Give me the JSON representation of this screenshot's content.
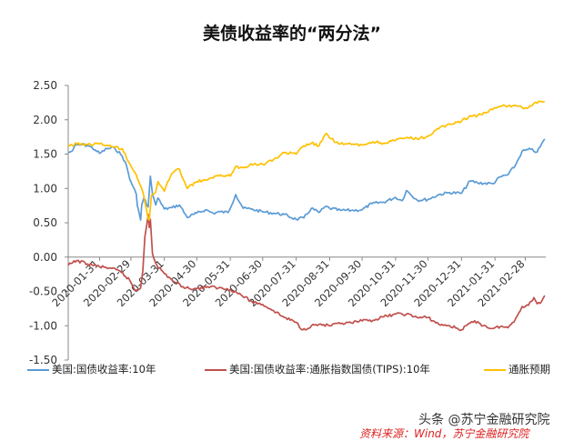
{
  "chart_data": {
    "type": "line",
    "title": "美债收益率的“两分法”",
    "ylim": [
      -1.5,
      2.5
    ],
    "yticks": [
      "2.50",
      "2.00",
      "1.50",
      "1.00",
      "0.50",
      "0.00",
      "-0.50",
      "-1.00",
      "-1.50"
    ],
    "x_tick_labels": [
      "2020-01-31",
      "2020-02-29",
      "2020-03-31",
      "2020-04-30",
      "2020-05-31",
      "2020-06-30",
      "2020-07-31",
      "2020-08-31",
      "2020-09-30",
      "2020-10-31",
      "2020-11-30",
      "2020-12-31",
      "2021-01-31",
      "2021-02-28"
    ],
    "x_range": [
      "2020-01-02",
      "2021-03-19"
    ],
    "grid": false,
    "legend_position": "bottom",
    "series": [
      {
        "name": "美国:国债收益率:10年",
        "color": "#5b9bd5",
        "points": [
          [
            "2020-01-02",
            1.52
          ],
          [
            "2020-01-06",
            1.55
          ],
          [
            "2020-01-08",
            1.62
          ],
          [
            "2020-01-15",
            1.64
          ],
          [
            "2020-01-21",
            1.62
          ],
          [
            "2020-01-27",
            1.56
          ],
          [
            "2020-01-31",
            1.51
          ],
          [
            "2020-02-07",
            1.58
          ],
          [
            "2020-02-14",
            1.59
          ],
          [
            "2020-02-21",
            1.47
          ],
          [
            "2020-02-25",
            1.33
          ],
          [
            "2020-02-28",
            1.13
          ],
          [
            "2020-03-03",
            1.0
          ],
          [
            "2020-03-05",
            0.92
          ],
          [
            "2020-03-06",
            0.75
          ],
          [
            "2020-03-09",
            0.54
          ],
          [
            "2020-03-10",
            0.76
          ],
          [
            "2020-03-12",
            0.86
          ],
          [
            "2020-03-16",
            0.73
          ],
          [
            "2020-03-18",
            1.18
          ],
          [
            "2020-03-20",
            0.92
          ],
          [
            "2020-03-23",
            0.76
          ],
          [
            "2020-03-25",
            0.86
          ],
          [
            "2020-03-31",
            0.7
          ],
          [
            "2020-04-07",
            0.72
          ],
          [
            "2020-04-14",
            0.76
          ],
          [
            "2020-04-21",
            0.58
          ],
          [
            "2020-04-30",
            0.64
          ],
          [
            "2020-05-08",
            0.69
          ],
          [
            "2020-05-15",
            0.64
          ],
          [
            "2020-05-22",
            0.66
          ],
          [
            "2020-05-29",
            0.65
          ],
          [
            "2020-06-05",
            0.91
          ],
          [
            "2020-06-12",
            0.71
          ],
          [
            "2020-06-19",
            0.7
          ],
          [
            "2020-06-30",
            0.66
          ],
          [
            "2020-07-10",
            0.64
          ],
          [
            "2020-07-20",
            0.62
          ],
          [
            "2020-07-31",
            0.55
          ],
          [
            "2020-08-07",
            0.57
          ],
          [
            "2020-08-14",
            0.71
          ],
          [
            "2020-08-21",
            0.65
          ],
          [
            "2020-08-28",
            0.74
          ],
          [
            "2020-08-31",
            0.71
          ],
          [
            "2020-09-10",
            0.68
          ],
          [
            "2020-09-20",
            0.68
          ],
          [
            "2020-09-30",
            0.69
          ],
          [
            "2020-10-09",
            0.78
          ],
          [
            "2020-10-20",
            0.8
          ],
          [
            "2020-10-31",
            0.87
          ],
          [
            "2020-11-06",
            0.82
          ],
          [
            "2020-11-10",
            0.97
          ],
          [
            "2020-11-20",
            0.83
          ],
          [
            "2020-11-30",
            0.84
          ],
          [
            "2020-12-10",
            0.91
          ],
          [
            "2020-12-20",
            0.94
          ],
          [
            "2020-12-31",
            0.93
          ],
          [
            "2021-01-08",
            1.11
          ],
          [
            "2021-01-15",
            1.08
          ],
          [
            "2021-01-29",
            1.07
          ],
          [
            "2021-02-05",
            1.17
          ],
          [
            "2021-02-12",
            1.2
          ],
          [
            "2021-02-19",
            1.34
          ],
          [
            "2021-02-25",
            1.54
          ],
          [
            "2021-03-05",
            1.57
          ],
          [
            "2021-03-11",
            1.53
          ],
          [
            "2021-03-18",
            1.72
          ]
        ]
      },
      {
        "name": "美国:国债收益率:通胀指数国债(TIPS):10年",
        "color": "#c0504d",
        "points": [
          [
            "2020-01-02",
            -0.12
          ],
          [
            "2020-01-10",
            -0.05
          ],
          [
            "2020-01-20",
            -0.1
          ],
          [
            "2020-01-31",
            -0.14
          ],
          [
            "2020-02-10",
            -0.16
          ],
          [
            "2020-02-20",
            -0.22
          ],
          [
            "2020-02-28",
            -0.34
          ],
          [
            "2020-03-04",
            -0.49
          ],
          [
            "2020-03-09",
            -0.45
          ],
          [
            "2020-03-11",
            -0.2
          ],
          [
            "2020-03-13",
            0.3
          ],
          [
            "2020-03-16",
            0.62
          ],
          [
            "2020-03-17",
            0.43
          ],
          [
            "2020-03-18",
            0.55
          ],
          [
            "2020-03-20",
            0.05
          ],
          [
            "2020-03-24",
            -0.12
          ],
          [
            "2020-03-31",
            -0.24
          ],
          [
            "2020-04-10",
            -0.37
          ],
          [
            "2020-04-20",
            -0.45
          ],
          [
            "2020-04-30",
            -0.46
          ],
          [
            "2020-05-10",
            -0.43
          ],
          [
            "2020-05-20",
            -0.45
          ],
          [
            "2020-05-31",
            -0.47
          ],
          [
            "2020-06-10",
            -0.55
          ],
          [
            "2020-06-20",
            -0.65
          ],
          [
            "2020-06-30",
            -0.69
          ],
          [
            "2020-07-10",
            -0.78
          ],
          [
            "2020-07-20",
            -0.88
          ],
          [
            "2020-07-31",
            -0.95
          ],
          [
            "2020-08-06",
            -1.06
          ],
          [
            "2020-08-14",
            -1.0
          ],
          [
            "2020-08-21",
            -0.98
          ],
          [
            "2020-08-31",
            -1.0
          ],
          [
            "2020-09-10",
            -0.97
          ],
          [
            "2020-09-20",
            -0.96
          ],
          [
            "2020-09-30",
            -0.93
          ],
          [
            "2020-10-10",
            -0.92
          ],
          [
            "2020-10-20",
            -0.87
          ],
          [
            "2020-10-31",
            -0.83
          ],
          [
            "2020-11-10",
            -0.83
          ],
          [
            "2020-11-20",
            -0.88
          ],
          [
            "2020-11-30",
            -0.88
          ],
          [
            "2020-12-10",
            -0.98
          ],
          [
            "2020-12-20",
            -1.0
          ],
          [
            "2020-12-31",
            -1.06
          ],
          [
            "2021-01-08",
            -0.96
          ],
          [
            "2021-01-15",
            -0.94
          ],
          [
            "2021-01-20",
            -1.0
          ],
          [
            "2021-01-29",
            -1.04
          ],
          [
            "2021-02-05",
            -1.01
          ],
          [
            "2021-02-12",
            -1.03
          ],
          [
            "2021-02-19",
            -0.9
          ],
          [
            "2021-02-25",
            -0.72
          ],
          [
            "2021-03-03",
            -0.7
          ],
          [
            "2021-03-08",
            -0.59
          ],
          [
            "2021-03-11",
            -0.68
          ],
          [
            "2021-03-15",
            -0.65
          ],
          [
            "2021-03-18",
            -0.56
          ]
        ]
      },
      {
        "name": "通胀预期",
        "color": "#ffc000",
        "points": [
          [
            "2020-01-02",
            1.62
          ],
          [
            "2020-01-10",
            1.65
          ],
          [
            "2020-01-20",
            1.64
          ],
          [
            "2020-01-31",
            1.65
          ],
          [
            "2020-02-07",
            1.63
          ],
          [
            "2020-02-14",
            1.6
          ],
          [
            "2020-02-21",
            1.58
          ],
          [
            "2020-02-28",
            1.36
          ],
          [
            "2020-03-05",
            1.2
          ],
          [
            "2020-03-10",
            1.0
          ],
          [
            "2020-03-13",
            0.8
          ],
          [
            "2020-03-16",
            0.55
          ],
          [
            "2020-03-17",
            0.54
          ],
          [
            "2020-03-19",
            0.9
          ],
          [
            "2020-03-23",
            0.95
          ],
          [
            "2020-03-25",
            1.1
          ],
          [
            "2020-03-31",
            0.96
          ],
          [
            "2020-04-03",
            1.1
          ],
          [
            "2020-04-08",
            1.23
          ],
          [
            "2020-04-14",
            1.28
          ],
          [
            "2020-04-21",
            1.0
          ],
          [
            "2020-04-30",
            1.1
          ],
          [
            "2020-05-08",
            1.12
          ],
          [
            "2020-05-15",
            1.15
          ],
          [
            "2020-05-22",
            1.2
          ],
          [
            "2020-05-31",
            1.18
          ],
          [
            "2020-06-05",
            1.32
          ],
          [
            "2020-06-12",
            1.3
          ],
          [
            "2020-06-19",
            1.36
          ],
          [
            "2020-06-30",
            1.35
          ],
          [
            "2020-07-10",
            1.42
          ],
          [
            "2020-07-20",
            1.52
          ],
          [
            "2020-07-31",
            1.5
          ],
          [
            "2020-08-07",
            1.62
          ],
          [
            "2020-08-14",
            1.66
          ],
          [
            "2020-08-21",
            1.62
          ],
          [
            "2020-08-28",
            1.8
          ],
          [
            "2020-08-31",
            1.73
          ],
          [
            "2020-09-10",
            1.65
          ],
          [
            "2020-09-20",
            1.64
          ],
          [
            "2020-09-30",
            1.63
          ],
          [
            "2020-10-10",
            1.68
          ],
          [
            "2020-10-20",
            1.66
          ],
          [
            "2020-10-31",
            1.7
          ],
          [
            "2020-11-10",
            1.74
          ],
          [
            "2020-11-20",
            1.72
          ],
          [
            "2020-11-30",
            1.76
          ],
          [
            "2020-12-10",
            1.87
          ],
          [
            "2020-12-20",
            1.94
          ],
          [
            "2020-12-31",
            1.98
          ],
          [
            "2021-01-08",
            2.06
          ],
          [
            "2021-01-15",
            2.06
          ],
          [
            "2021-01-22",
            2.1
          ],
          [
            "2021-01-29",
            2.15
          ],
          [
            "2021-02-05",
            2.2
          ],
          [
            "2021-02-12",
            2.2
          ],
          [
            "2021-02-19",
            2.21
          ],
          [
            "2021-02-25",
            2.18
          ],
          [
            "2021-03-03",
            2.18
          ],
          [
            "2021-03-08",
            2.24
          ],
          [
            "2021-03-11",
            2.24
          ],
          [
            "2021-03-15",
            2.27
          ],
          [
            "2021-03-18",
            2.27
          ]
        ]
      }
    ]
  },
  "footer": {
    "watermark": "头条 @苏宁金融研究院",
    "source": "资料来源：Wind，苏宁金融研究院"
  }
}
